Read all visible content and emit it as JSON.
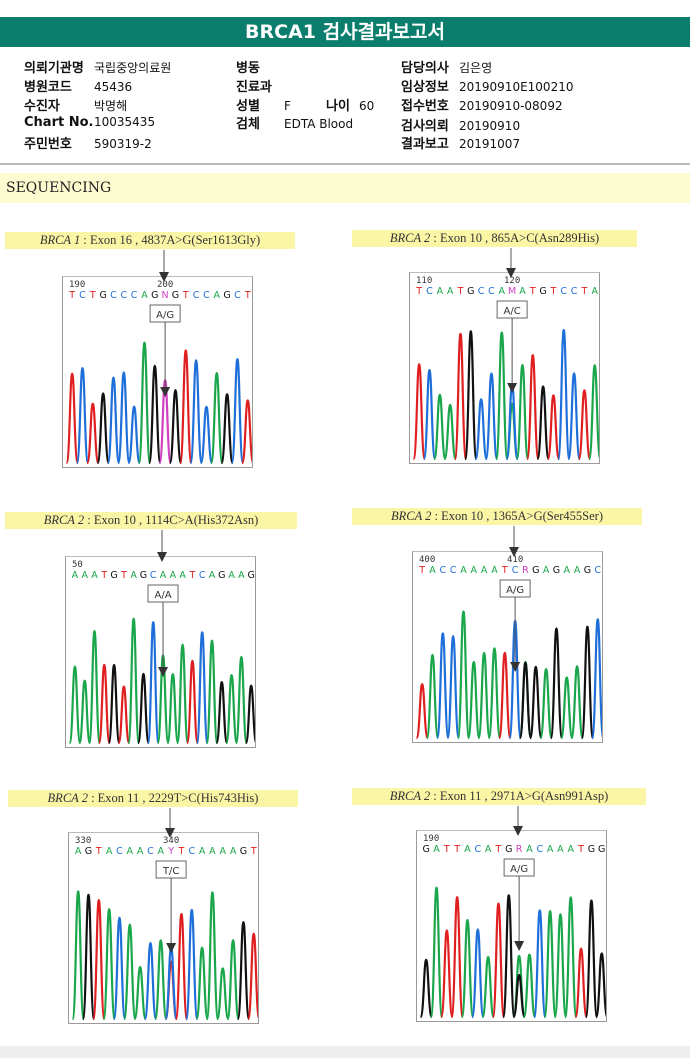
{
  "title": "BRCA1 검사결과보고서",
  "info": {
    "col1": [
      {
        "k": "의뢰기관명",
        "v": "국립중앙의료원"
      },
      {
        "k": "병원코드",
        "v": "45436"
      },
      {
        "k": "수진자",
        "v": "박명해"
      },
      {
        "k": "Chart No.",
        "v": "10035435"
      },
      {
        "k": "주민번호",
        "v": "590319-2"
      }
    ],
    "col2": {
      "ward_k": "병동",
      "dept_k": "진료과",
      "sex_k": "성별",
      "sex_v": "F",
      "age_k": "나이",
      "age_v": "60",
      "spec_k": "검체",
      "spec_v": "EDTA Blood"
    },
    "col3": [
      {
        "k": "담당의사",
        "v": "김은영"
      },
      {
        "k": "임상정보",
        "v": "20190910E100210"
      },
      {
        "k": "접수번호",
        "v": "20190910-08092"
      },
      {
        "k": "검사의뢰",
        "v": "20190910"
      },
      {
        "k": "결과보고",
        "v": "20191007"
      }
    ]
  },
  "section": "SEQUENCING",
  "colors": {
    "A": "#1aa64a",
    "C": "#1e6fd9",
    "G": "#111111",
    "T": "#e02020",
    "N": "#d040c0",
    "header": "#0b7d6c"
  },
  "variants": [
    {
      "gene": "BRCA 1",
      "desc": " : Exon 16 , 4837A>G(Ser1613Gly)",
      "seq": "TCTGCCCAGNGTCCAGCT",
      "ticks": [
        "190",
        "200"
      ],
      "call": "A/G"
    },
    {
      "gene": "BRCA 2",
      "desc": " : Exon 10 , 865A>C(Asn289His)",
      "seq": "TCAATGCCAMATGTCCTA",
      "ticks": [
        "110",
        "120"
      ],
      "call": "A/C"
    },
    {
      "gene": "BRCA 2",
      "desc": " : Exon 10 , 1114C>A(His372Asn)",
      "seq": "AAATGTAGCAAATCAGAAG",
      "ticks": [
        "50"
      ],
      "call": "A/A"
    },
    {
      "gene": "BRCA 2",
      "desc": " : Exon 10 , 1365A>G(Ser455Ser)",
      "seq": "TACCAAAATCRGAGAAGC",
      "ticks": [
        "400",
        "410"
      ],
      "call": "A/G"
    },
    {
      "gene": "BRCA 2",
      "desc": " : Exon 11 , 2229T>C(His743His)",
      "seq": "AGTACAACAYTCAAAAGT",
      "ticks": [
        "330",
        "340"
      ],
      "call": "T/C"
    },
    {
      "gene": "BRCA 2",
      "desc": " : Exon 11 , 2971A>G(Asn991Asp)",
      "seq": "GATTACATGRACAAATGG",
      "ticks": [
        "190"
      ],
      "call": "A/G"
    }
  ]
}
